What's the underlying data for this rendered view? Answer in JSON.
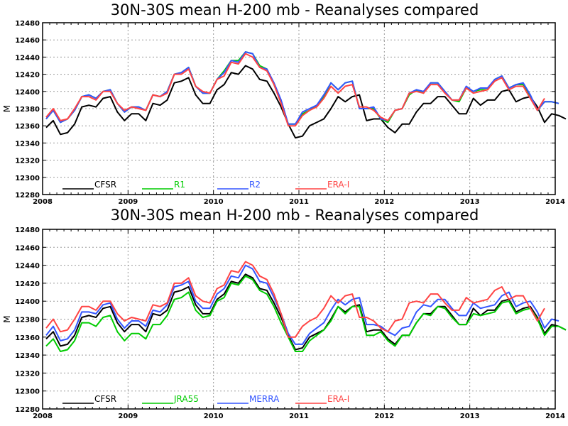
{
  "chart_data": [
    {
      "type": "line",
      "title": "30N-30S mean H-200 mb - Reanalyses compared",
      "ylabel": "M",
      "ylim": [
        12280,
        12480
      ],
      "yticks": [
        12280,
        12300,
        12320,
        12340,
        12360,
        12380,
        12400,
        12420,
        12440,
        12460,
        12480
      ],
      "xlim": [
        2008,
        2014
      ],
      "xticks": [
        "2008",
        "2009",
        "2010",
        "2011",
        "2012",
        "2013",
        "2014"
      ],
      "grid": true,
      "legend": "bottom-left",
      "series": [
        {
          "name": "CFSR",
          "color": "#000000",
          "values": [
            12358,
            12366,
            12350,
            12352,
            12362,
            12382,
            12384,
            12382,
            12392,
            12394,
            12376,
            12366,
            12374,
            12374,
            12366,
            12386,
            12384,
            12390,
            12410,
            12412,
            12416,
            12396,
            12386,
            12386,
            12402,
            12408,
            12422,
            12420,
            12430,
            12426,
            12414,
            12412,
            12398,
            12382,
            12362,
            12346,
            12348,
            12360,
            12364,
            12368,
            12380,
            12394,
            12388,
            12394,
            12396,
            12366,
            12368,
            12368,
            12358,
            12352,
            12362,
            12362,
            12376,
            12386,
            12386,
            12394,
            12394,
            12384,
            12374,
            12374,
            12392,
            12384,
            12390,
            12390,
            12400,
            12402,
            12388,
            12392,
            12394,
            12382,
            12364,
            12374,
            12372,
            12368
          ]
        },
        {
          "name": "R1",
          "color": "#00cc00",
          "values": [
            12368,
            12378,
            12364,
            12368,
            12378,
            12394,
            12396,
            12392,
            12400,
            12402,
            12386,
            12376,
            12382,
            12382,
            12378,
            12396,
            12394,
            12400,
            12420,
            12422,
            12428,
            12406,
            12398,
            12398,
            12414,
            12424,
            12436,
            12436,
            12446,
            12444,
            12430,
            12426,
            12408,
            12388,
            12362,
            12362,
            12374,
            12378,
            12384,
            12394,
            12410,
            12402,
            12410,
            12412,
            12380,
            12380,
            12380,
            12368,
            12364,
            12378,
            12380,
            12396,
            12402,
            12398,
            12410,
            12410,
            12400,
            12390,
            12388,
            12404,
            12400,
            12402,
            12402,
            12414,
            12418,
            12404,
            12408,
            12408,
            12394,
            12378,
            12388,
            12388,
            12386
          ]
        },
        {
          "name": "R2",
          "color": "#3355ff",
          "values": [
            12368,
            12378,
            12364,
            12368,
            12378,
            12394,
            12396,
            12392,
            12400,
            12402,
            12386,
            12376,
            12382,
            12382,
            12378,
            12396,
            12394,
            12400,
            12420,
            12422,
            12428,
            12406,
            12398,
            12398,
            12414,
            12422,
            12436,
            12434,
            12446,
            12444,
            12428,
            12426,
            12410,
            12390,
            12362,
            12362,
            12376,
            12380,
            12384,
            12396,
            12410,
            12402,
            12410,
            12412,
            12380,
            12380,
            12382,
            12368,
            12366,
            12378,
            12380,
            12398,
            12402,
            12400,
            12410,
            12410,
            12400,
            12390,
            12390,
            12406,
            12400,
            12404,
            12404,
            12414,
            12418,
            12404,
            12408,
            12410,
            12396,
            12378,
            12388,
            12388,
            12386
          ]
        },
        {
          "name": "ERA-I",
          "color": "#ff4444",
          "values": [
            12370,
            12380,
            12366,
            12368,
            12380,
            12394,
            12394,
            12390,
            12400,
            12400,
            12386,
            12378,
            12382,
            12380,
            12378,
            12396,
            12394,
            12398,
            12420,
            12420,
            12426,
            12406,
            12400,
            12398,
            12414,
            12418,
            12434,
            12432,
            12444,
            12440,
            12428,
            12424,
            12408,
            12386,
            12360,
            12360,
            12372,
            12378,
            12382,
            12392,
            12406,
            12398,
            12406,
            12408,
            12382,
            12382,
            12378,
            12370,
            12366,
            12378,
            12380,
            12398,
            12400,
            12398,
            12408,
            12408,
            12398,
            12390,
            12390,
            12404,
            12398,
            12400,
            12402,
            12412,
            12416,
            12402,
            12406,
            12406,
            12392,
            12378,
            12392
          ]
        }
      ]
    },
    {
      "type": "line",
      "title": "30N-30S mean H-200 mb - Reanalyses compared",
      "ylabel": "M",
      "ylim": [
        12280,
        12480
      ],
      "yticks": [
        12280,
        12300,
        12320,
        12340,
        12360,
        12380,
        12400,
        12420,
        12440,
        12460,
        12480
      ],
      "xlim": [
        2008,
        2014
      ],
      "xticks": [
        "2008",
        "2009",
        "2010",
        "2011",
        "2012",
        "2013",
        "2014"
      ],
      "grid": true,
      "legend": "bottom-left",
      "series": [
        {
          "name": "CFSR",
          "color": "#000000",
          "values": [
            12358,
            12366,
            12350,
            12352,
            12362,
            12382,
            12384,
            12382,
            12392,
            12394,
            12376,
            12366,
            12374,
            12374,
            12366,
            12386,
            12384,
            12390,
            12410,
            12412,
            12416,
            12396,
            12386,
            12386,
            12402,
            12408,
            12422,
            12420,
            12430,
            12426,
            12414,
            12412,
            12398,
            12382,
            12362,
            12346,
            12348,
            12360,
            12364,
            12368,
            12380,
            12394,
            12388,
            12394,
            12396,
            12366,
            12368,
            12368,
            12358,
            12352,
            12362,
            12362,
            12376,
            12386,
            12386,
            12394,
            12394,
            12384,
            12374,
            12374,
            12392,
            12384,
            12390,
            12390,
            12400,
            12402,
            12388,
            12392,
            12394,
            12382,
            12364,
            12374,
            12372,
            12368
          ]
        },
        {
          "name": "JRA55",
          "color": "#00cc00",
          "values": [
            12350,
            12358,
            12344,
            12346,
            12356,
            12376,
            12376,
            12372,
            12382,
            12384,
            12366,
            12356,
            12364,
            12364,
            12358,
            12374,
            12374,
            12384,
            12402,
            12404,
            12410,
            12390,
            12382,
            12384,
            12400,
            12404,
            12420,
            12418,
            12428,
            12424,
            12412,
            12408,
            12394,
            12376,
            12360,
            12344,
            12344,
            12356,
            12362,
            12368,
            12378,
            12394,
            12386,
            12394,
            12394,
            12362,
            12362,
            12366,
            12356,
            12350,
            12362,
            12362,
            12376,
            12386,
            12384,
            12394,
            12392,
            12382,
            12374,
            12374,
            12386,
            12384,
            12386,
            12388,
            12398,
            12400,
            12386,
            12390,
            12392,
            12380,
            12362,
            12372,
            12372,
            12368
          ]
        },
        {
          "name": "MERRA",
          "color": "#3355ff",
          "values": [
            12362,
            12372,
            12356,
            12358,
            12368,
            12388,
            12388,
            12386,
            12396,
            12398,
            12380,
            12370,
            12378,
            12378,
            12372,
            12390,
            12388,
            12396,
            12416,
            12418,
            12422,
            12400,
            12392,
            12392,
            12408,
            12414,
            12428,
            12426,
            12440,
            12436,
            12422,
            12420,
            12404,
            12386,
            12364,
            12352,
            12352,
            12364,
            12370,
            12376,
            12390,
            12402,
            12396,
            12402,
            12404,
            12374,
            12374,
            12372,
            12366,
            12362,
            12370,
            12372,
            12388,
            12396,
            12394,
            12402,
            12402,
            12392,
            12384,
            12384,
            12398,
            12392,
            12394,
            12396,
            12406,
            12410,
            12394,
            12398,
            12400,
            12388,
            12370,
            12380,
            12378
          ]
        },
        {
          "name": "ERA-I",
          "color": "#ff4444",
          "values": [
            12370,
            12380,
            12366,
            12368,
            12380,
            12394,
            12394,
            12390,
            12400,
            12400,
            12386,
            12378,
            12382,
            12380,
            12378,
            12396,
            12394,
            12398,
            12420,
            12420,
            12426,
            12406,
            12400,
            12398,
            12414,
            12418,
            12434,
            12432,
            12444,
            12440,
            12428,
            12424,
            12408,
            12386,
            12360,
            12360,
            12372,
            12378,
            12382,
            12392,
            12406,
            12398,
            12406,
            12408,
            12382,
            12382,
            12378,
            12370,
            12366,
            12378,
            12380,
            12398,
            12400,
            12398,
            12408,
            12408,
            12398,
            12390,
            12390,
            12404,
            12398,
            12400,
            12402,
            12412,
            12416,
            12402,
            12406,
            12406,
            12392,
            12378,
            12392
          ]
        }
      ]
    }
  ]
}
